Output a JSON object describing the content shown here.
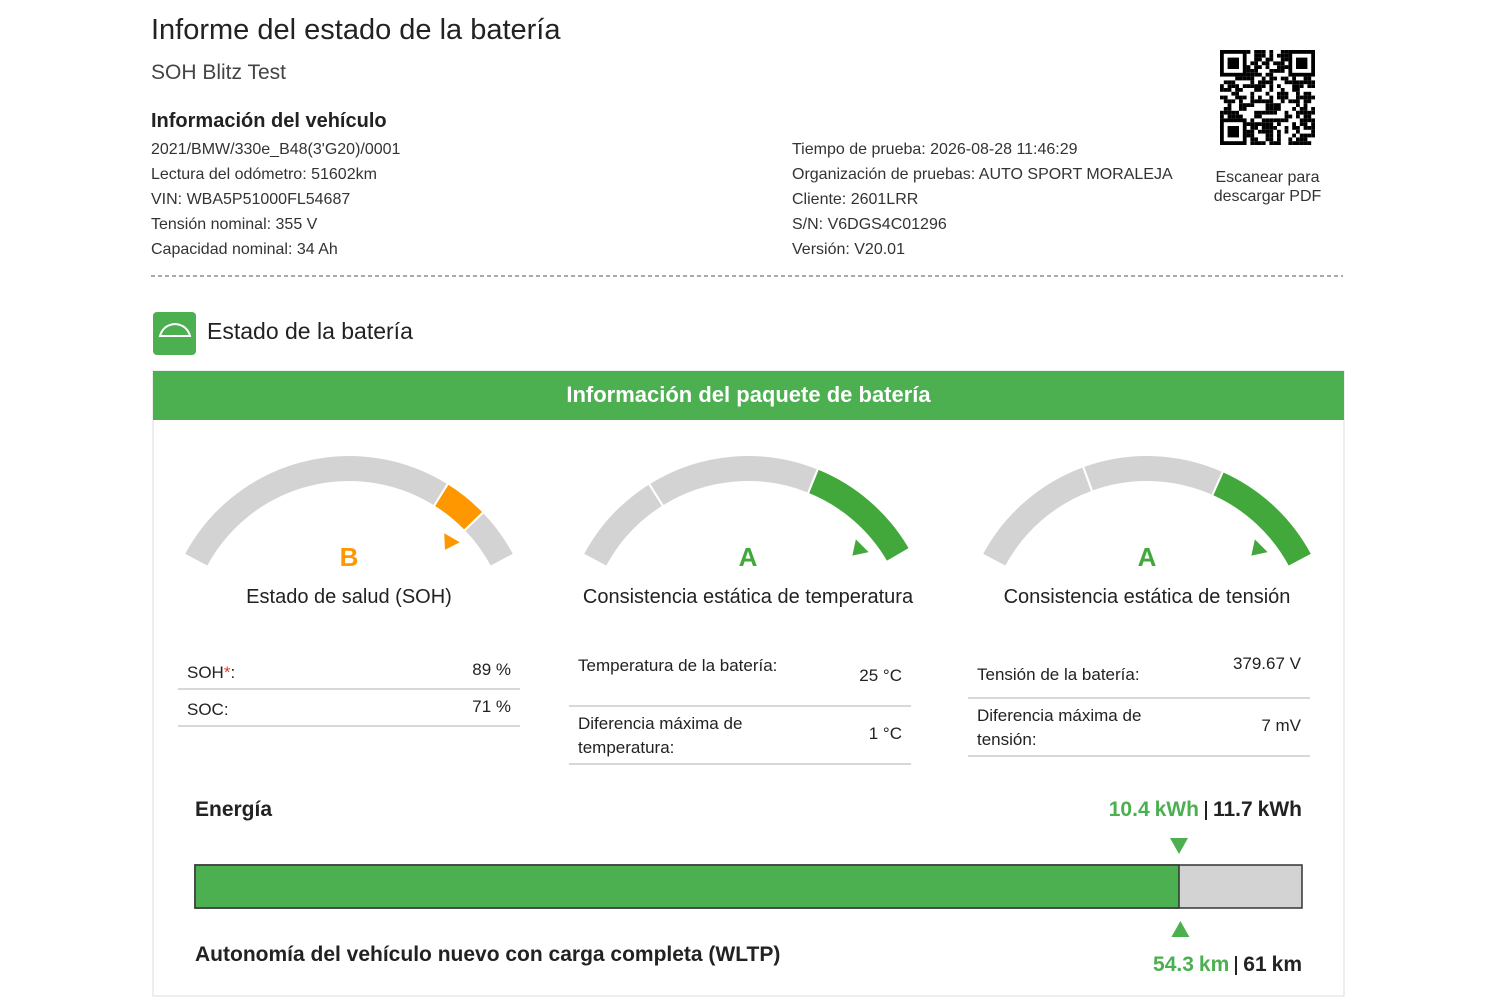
{
  "header": {
    "title": "Informe del estado de la batería",
    "subtitle": "SOH Blitz Test"
  },
  "vehicle": {
    "heading": "Información del vehículo",
    "lines": [
      "2021/BMW/330e_B48(3'G20)/0001",
      "Lectura del odómetro: 51602km",
      "VIN: WBA5P51000FL54687",
      "Tensión nominal: 355 V",
      "Capacidad nominal: 34 Ah"
    ],
    "test_lines": [
      "Tiempo de prueba: 2026-08-28 11:46:29",
      "Organización de pruebas: AUTO SPORT MORALEJA",
      "Cliente: 2601LRR",
      "S/N: V6DGS4C01296",
      "Versión: V20.01"
    ],
    "qr_caption": "Escanear para descargar PDF"
  },
  "section_title": "Estado de la batería",
  "pack": {
    "title": "Información del paquete de batería",
    "gauges": [
      {
        "grade": "B",
        "label": "Estado de salud (SOH)",
        "rows": [
          {
            "label": "SOH",
            "mark": "*",
            "suffix": ":",
            "value": "89 %"
          },
          {
            "label": "SOC:",
            "value": "71 %"
          }
        ]
      },
      {
        "grade": "A",
        "label": "Consistencia estática de temperatura",
        "rows": [
          {
            "label": "Temperatura de la batería:",
            "value": "25 °C"
          },
          {
            "label": "Diferencia máxima de temperatura:",
            "value": "1 °C"
          }
        ]
      },
      {
        "grade": "A",
        "label": "Consistencia estática de tensión",
        "rows": [
          {
            "label": "Tensión de la batería:",
            "value": "379.67 V"
          },
          {
            "label": "Diferencia máxima de tensión:",
            "value": "7 mV"
          }
        ]
      }
    ]
  },
  "energy": {
    "title": "Energía",
    "current": 10.4,
    "total": 11.7,
    "unit": "kWh"
  },
  "range": {
    "title": "Autonomía del vehículo nuevo con carga completa (WLTP)",
    "current": 54.3,
    "total": 61,
    "unit": "km"
  }
}
